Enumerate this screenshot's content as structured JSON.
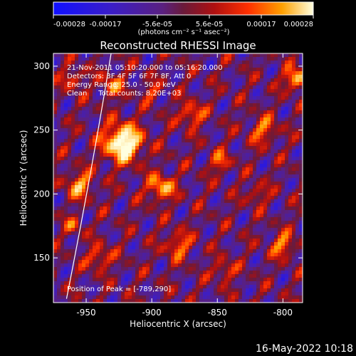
{
  "chart_data": {
    "type": "heatmap",
    "title": "Reconstructed RHESSI Image",
    "xlabel": "Heliocentric X (arcsec)",
    "ylabel": "Heliocentric Y (arcsec)",
    "xlim": [
      -975,
      -785
    ],
    "ylim": [
      115,
      310
    ],
    "xticks": [
      -950,
      -900,
      -850,
      -800
    ],
    "yticks": [
      150,
      200,
      250,
      300
    ],
    "colorbar": {
      "range": [
        -0.00028,
        0.00028
      ],
      "tick_labels": [
        "-0.00028",
        "-0.00017",
        "-5.6e-05",
        "5.6e-05",
        "0.00017",
        "0.00028"
      ],
      "unit_label": "(photons cm⁻² s⁻¹ asec⁻²)"
    },
    "info_lines": [
      "21-Nov-2011 05:10:20.000 to 05:16:20.000",
      "Detectors: 3F 4F 5F 6F 7F 8F, Att 0",
      "Energy Range: 25.0 - 50.0 keV",
      "Clean     Total counts: 8.20E+03"
    ],
    "peak_label": "Position of Peak = [-789,290]",
    "peak_position": [
      -789,
      290
    ],
    "limb_curve_points": [
      [
        -965,
        118
      ],
      [
        -947,
        215
      ],
      [
        -931,
        310
      ]
    ]
  },
  "footer": {
    "date": "16-May-2022 10:18"
  }
}
